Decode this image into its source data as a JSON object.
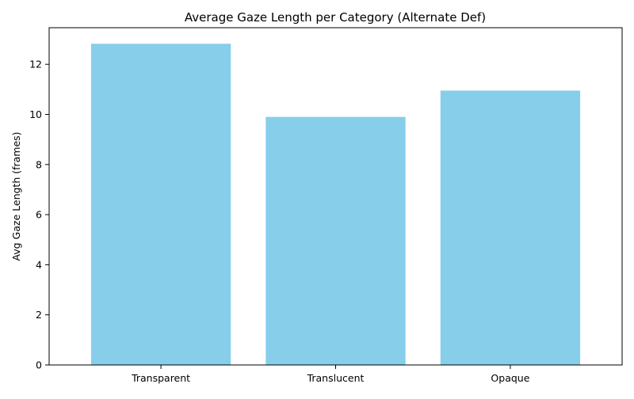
{
  "chart_data": {
    "type": "bar",
    "title": "Average Gaze Length per Category (Alternate Def)",
    "xlabel": "",
    "ylabel": "Avg Gaze Length (frames)",
    "categories": [
      "Transparent",
      "Translucent",
      "Opaque"
    ],
    "values": [
      12.82,
      9.9,
      10.95
    ],
    "ylim": [
      0,
      13.46
    ],
    "yticks": [
      0,
      2,
      4,
      6,
      8,
      10,
      12
    ],
    "ytick_labels": [
      "0",
      "2",
      "4",
      "6",
      "8",
      "10",
      "12"
    ],
    "bar_color": "#87ceeb",
    "grid": false,
    "legend": "none"
  }
}
